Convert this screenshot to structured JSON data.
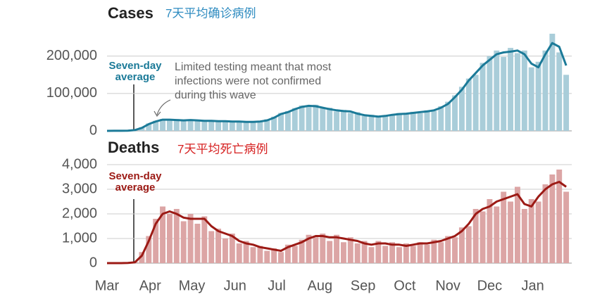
{
  "chart_data": [
    {
      "type": "bar-line",
      "title": "Cases",
      "subtitle": "7天平均确诊病例",
      "annotations": [
        "Limited testing meant that most infections were not confirmed during this wave"
      ],
      "x": [
        0,
        5,
        10,
        15,
        20,
        25,
        30,
        35,
        40,
        45,
        50,
        55,
        60,
        65,
        70,
        75,
        80,
        85,
        90,
        95,
        100,
        105,
        110,
        115,
        120,
        125,
        130,
        135,
        140,
        145,
        150,
        155,
        160,
        165,
        170,
        175,
        180,
        185,
        190,
        195,
        200,
        205,
        210,
        215,
        220,
        225,
        230,
        235,
        240,
        245,
        250,
        255,
        260,
        265,
        270,
        275,
        280,
        285,
        290,
        295,
        300,
        305,
        310,
        315,
        320,
        325,
        330
      ],
      "xlim": [
        0,
        334
      ],
      "ylim": [
        0,
        290000
      ],
      "yticks": [
        0,
        {
          "value": 100000,
          "label": "100,000"
        },
        {
          "value": 200000,
          "label": "200,000"
        }
      ],
      "grid": true,
      "series": [
        {
          "color": "#a9cdd9",
          "values": [
            0,
            200,
            300,
            800,
            3000,
            10000,
            20000,
            27000,
            32000,
            28000,
            31000,
            26000,
            30000,
            27000,
            29000,
            25000,
            28000,
            24000,
            26000,
            23000,
            25000,
            22000,
            27000,
            31000,
            38000,
            48000,
            53000,
            61000,
            68000,
            64000,
            70000,
            60000,
            62000,
            52000,
            56000,
            48000,
            50000,
            40000,
            43000,
            36000,
            42000,
            41000,
            48000,
            44000,
            51000,
            47000,
            55000,
            53000,
            66000,
            78000,
            95000,
            118000,
            140000,
            150000,
            182000,
            200000,
            215000,
            198000,
            222000,
            208000,
            215000,
            170000,
            185000,
            215000,
            260000,
            210000,
            150000
          ]
        },
        {
          "name": "Seven-day average",
          "color": "#1b7a98",
          "values": [
            0,
            100,
            200,
            500,
            2000,
            8000,
            18000,
            25000,
            30000,
            30000,
            29000,
            28000,
            29000,
            28000,
            27000,
            27000,
            26000,
            26000,
            25000,
            25000,
            24000,
            24000,
            25000,
            28000,
            35000,
            45000,
            50000,
            58000,
            64000,
            67000,
            66000,
            62000,
            58000,
            55000,
            53000,
            52000,
            46000,
            42000,
            40000,
            38000,
            40000,
            43000,
            45000,
            46000,
            48000,
            50000,
            52000,
            55000,
            62000,
            72000,
            90000,
            110000,
            135000,
            155000,
            175000,
            190000,
            205000,
            210000,
            212000,
            215000,
            205000,
            180000,
            170000,
            205000,
            235000,
            225000,
            175000
          ]
        }
      ]
    },
    {
      "type": "bar-line",
      "title": "Deaths",
      "subtitle": "7天平均死亡病例",
      "x": [
        0,
        5,
        10,
        15,
        20,
        25,
        30,
        35,
        40,
        45,
        50,
        55,
        60,
        65,
        70,
        75,
        80,
        85,
        90,
        95,
        100,
        105,
        110,
        115,
        120,
        125,
        130,
        135,
        140,
        145,
        150,
        155,
        160,
        165,
        170,
        175,
        180,
        185,
        190,
        195,
        200,
        205,
        210,
        215,
        220,
        225,
        230,
        235,
        240,
        245,
        250,
        255,
        260,
        265,
        270,
        275,
        280,
        285,
        290,
        295,
        300,
        305,
        310,
        315,
        320,
        325,
        330
      ],
      "xlim": [
        0,
        334
      ],
      "xticks": [
        {
          "value": 0,
          "label": "Mar"
        },
        {
          "value": 31,
          "label": "Apr"
        },
        {
          "value": 61,
          "label": "May"
        },
        {
          "value": 92,
          "label": "Jun"
        },
        {
          "value": 122,
          "label": "Jul"
        },
        {
          "value": 153,
          "label": "Aug"
        },
        {
          "value": 184,
          "label": "Sep"
        },
        {
          "value": 214,
          "label": "Oct"
        },
        {
          "value": 245,
          "label": "Nov"
        },
        {
          "value": 275,
          "label": "Dec"
        },
        {
          "value": 306,
          "label": "Jan"
        }
      ],
      "ylim": [
        0,
        4400
      ],
      "yticks": [
        0,
        {
          "value": 1000,
          "label": "1,000"
        },
        {
          "value": 2000,
          "label": "2,000"
        },
        {
          "value": 3000,
          "label": "3,000"
        },
        {
          "value": 4000,
          "label": "4,000"
        }
      ],
      "grid": true,
      "series": [
        {
          "color": "#dca5a5",
          "values": [
            0,
            0,
            2,
            10,
            60,
            450,
            1100,
            1800,
            2300,
            2000,
            2200,
            1700,
            2000,
            1600,
            1900,
            1300,
            1400,
            1000,
            1200,
            800,
            900,
            650,
            700,
            500,
            600,
            450,
            750,
            700,
            950,
            1150,
            1050,
            1200,
            900,
            1150,
            850,
            1050,
            800,
            900,
            650,
            900,
            700,
            850,
            650,
            800,
            700,
            850,
            750,
            950,
            850,
            1100,
            1050,
            1450,
            1500,
            2200,
            2100,
            2600,
            2300,
            2900,
            2500,
            3100,
            2200,
            2600,
            2500,
            3200,
            3600,
            3800,
            2900
          ]
        },
        {
          "name": "Seven-day average",
          "color": "#9c1a15",
          "values": [
            0,
            0,
            0,
            5,
            30,
            300,
            900,
            1600,
            2000,
            2100,
            2000,
            1850,
            1800,
            1800,
            1800,
            1500,
            1300,
            1200,
            1100,
            900,
            800,
            750,
            650,
            600,
            550,
            500,
            650,
            750,
            850,
            1000,
            1100,
            1100,
            1050,
            1050,
            1000,
            950,
            900,
            800,
            750,
            800,
            800,
            750,
            750,
            700,
            750,
            800,
            800,
            850,
            900,
            1000,
            1100,
            1300,
            1600,
            2000,
            2200,
            2300,
            2500,
            2600,
            2700,
            2800,
            2400,
            2300,
            2700,
            3000,
            3200,
            3300,
            3100
          ]
        }
      ]
    }
  ]
}
